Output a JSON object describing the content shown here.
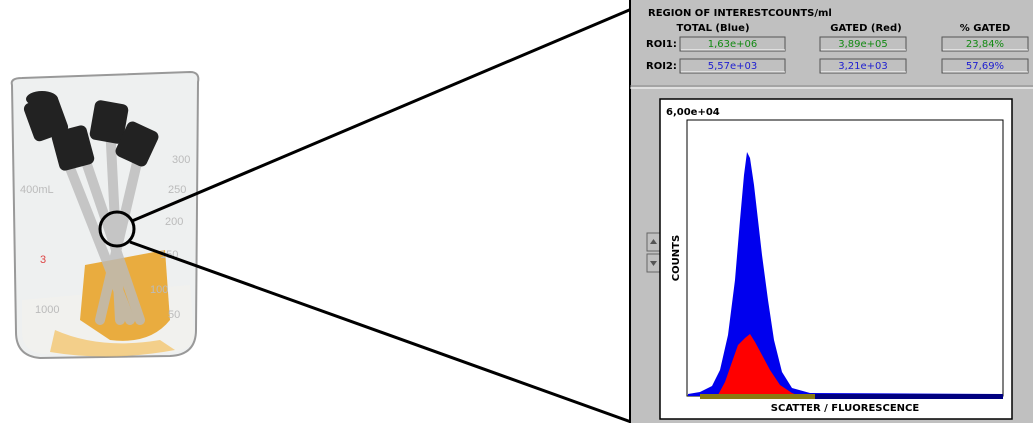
{
  "beaker": {
    "markings": [
      "400mL",
      "300",
      "250",
      "200",
      "150",
      "100",
      "50",
      "3",
      "1000"
    ]
  },
  "roi_panel": {
    "title": "REGION OF INTEREST",
    "units": "COUNTS/ml",
    "columns": [
      "TOTAL (Blue)",
      "GATED (Red)",
      "% GATED"
    ],
    "rows": [
      {
        "label": "ROI1:",
        "cells": [
          "1,63e+06",
          "3,89e+05",
          "23,84%"
        ]
      },
      {
        "label": "ROI2:",
        "cells": [
          "5,57e+03",
          "3,21e+03",
          "57,69%"
        ]
      }
    ]
  },
  "histogram": {
    "y_max_label": "6,00e+04",
    "y_label": "COUNTS",
    "x_label": "SCATTER / FLUORESCENCE"
  }
}
